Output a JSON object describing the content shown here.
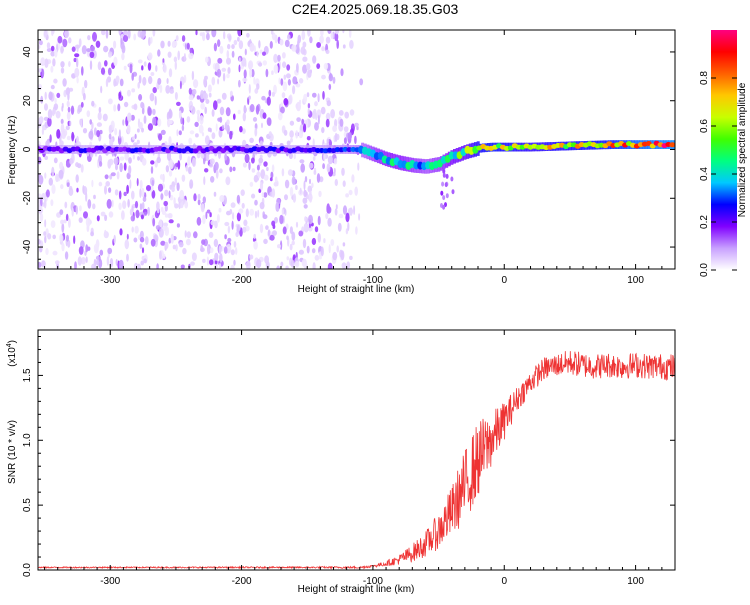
{
  "figure_title": "C2E4.2025.069.18.35.G03",
  "colors": {
    "snr_line": "#ee3333",
    "axis": "#000000",
    "background": "#ffffff"
  },
  "chart_data": [
    {
      "type": "heatmap",
      "title": "C2E4.2025.069.18.35.G03",
      "xlabel": "Height of straight line (km)",
      "ylabel": "Frequency (Hz)",
      "xlim": [
        -355,
        130
      ],
      "ylim": [
        -49,
        49
      ],
      "xticks": [
        -300,
        -200,
        -100,
        0,
        100
      ],
      "yticks": [
        -40,
        -20,
        0,
        20,
        40
      ],
      "xtick_labels": [
        "-300",
        "-200",
        "-100",
        "0",
        "100"
      ],
      "ytick_labels": [
        "-40",
        "-20",
        "0",
        "20",
        "40"
      ],
      "colorbar": {
        "label": "Normalized spectral amplitude",
        "range": [
          0,
          1
        ],
        "ticks": [
          0.0,
          0.2,
          0.4,
          0.6,
          0.8
        ],
        "tick_labels": [
          "0.0",
          "0.2",
          "0.4",
          "0.6",
          "0.8"
        ],
        "colormap": [
          "#ffffff",
          "#c8a0ff",
          "#8000ff",
          "#0000ff",
          "#00c8ff",
          "#00ff80",
          "#40ff00",
          "#c8ff00",
          "#ffc800",
          "#ff6000",
          "#ff0000",
          "#ff0080"
        ]
      },
      "signal_track": {
        "x": [
          -355,
          -300,
          -200,
          -150,
          -120,
          -110,
          -100,
          -90,
          -80,
          -70,
          -60,
          -50,
          -40,
          -30,
          -20,
          -10,
          0,
          20,
          50,
          80,
          100,
          130
        ],
        "freq": [
          0,
          0,
          0,
          0,
          0,
          0,
          -2,
          -4,
          -5.5,
          -6.5,
          -7,
          -6,
          -3,
          -1,
          0.5,
          1,
          1,
          1,
          1.5,
          2,
          2,
          2
        ],
        "amplitude": [
          0.25,
          0.25,
          0.25,
          0.25,
          0.3,
          0.35,
          0.45,
          0.5,
          0.5,
          0.45,
          0.4,
          0.45,
          0.55,
          0.6,
          0.75,
          0.8,
          0.75,
          0.7,
          0.75,
          0.8,
          0.9,
          0.95
        ]
      },
      "noise_region_x": [
        -355,
        -105
      ]
    },
    {
      "type": "line",
      "xlabel": "Height of straight line (km)",
      "ylabel": "SNR (10 * v/v)",
      "y_multiplier": "(x10",
      "y_multiplier_exp": "4",
      "xlim": [
        -355,
        130
      ],
      "ylim": [
        0,
        1.85
      ],
      "xticks": [
        -300,
        -200,
        -100,
        0,
        100
      ],
      "yticks": [
        0.0,
        0.5,
        1.0,
        1.5
      ],
      "xtick_labels": [
        "-300",
        "-200",
        "-100",
        "0",
        "100"
      ],
      "ytick_labels": [
        "0.0",
        "0.5",
        "1.0",
        "1.5"
      ],
      "series": [
        {
          "x": [
            -355,
            -250,
            -150,
            -110,
            -100,
            -90,
            -80,
            -70,
            -60,
            -50,
            -40,
            -30,
            -20,
            -10,
            0,
            10,
            20,
            30,
            40,
            50,
            60,
            70,
            80,
            90,
            100,
            110,
            120,
            130
          ],
          "y": [
            0.02,
            0.02,
            0.02,
            0.02,
            0.03,
            0.05,
            0.08,
            0.13,
            0.2,
            0.3,
            0.45,
            0.65,
            0.85,
            1.0,
            1.15,
            1.32,
            1.45,
            1.55,
            1.58,
            1.6,
            1.58,
            1.57,
            1.58,
            1.57,
            1.58,
            1.57,
            1.57,
            1.56
          ],
          "noise": [
            0.005,
            0.005,
            0.006,
            0.008,
            0.01,
            0.02,
            0.04,
            0.07,
            0.1,
            0.14,
            0.2,
            0.28,
            0.3,
            0.22,
            0.15,
            0.1,
            0.09,
            0.09,
            0.09,
            0.1,
            0.1,
            0.1,
            0.1,
            0.1,
            0.1,
            0.1,
            0.1,
            0.11
          ]
        }
      ]
    }
  ]
}
